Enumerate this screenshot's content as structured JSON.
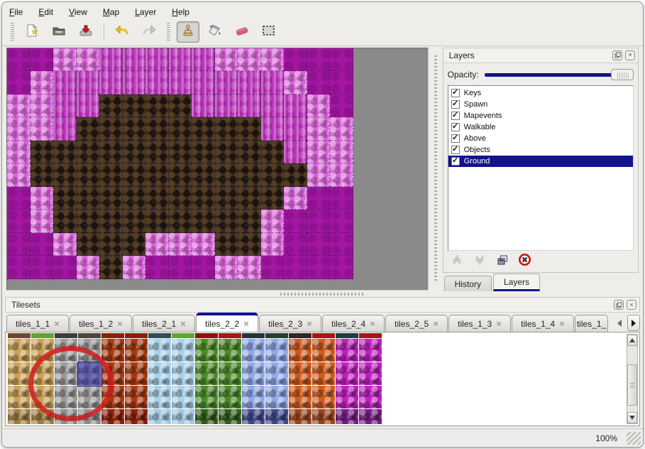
{
  "menubar": {
    "items": [
      "File",
      "Edit",
      "View",
      "Map",
      "Layer",
      "Help"
    ]
  },
  "toolbar": {
    "buttons": [
      {
        "name": "new",
        "icon": "new-file-icon"
      },
      {
        "name": "open",
        "icon": "open-folder-icon"
      },
      {
        "name": "save",
        "icon": "save-icon"
      },
      {
        "name": "undo",
        "icon": "undo-icon"
      },
      {
        "name": "redo",
        "icon": "redo-icon"
      },
      {
        "name": "stamp",
        "icon": "stamp-icon",
        "active": true
      },
      {
        "name": "fill",
        "icon": "fill-bucket-icon"
      },
      {
        "name": "eraser",
        "icon": "eraser-icon"
      },
      {
        "name": "select",
        "icon": "rect-select-icon"
      }
    ]
  },
  "map": {
    "background": "#8a8a8a",
    "palette": {
      "D": "#a315a3",
      "P": "#da64da",
      "T": "#c133c1",
      "B": "#37291e"
    },
    "grid_rows": [
      "DDPPTTTTTPPPDDD",
      "DPTTTTTTTTTTPDD",
      "PPTTBBBBTTTTTPD",
      "PPTBBBBBBBBTTPP",
      "PBBBBBBBBBBBTPP",
      "PBBBBBBBBBBBBPP",
      "DPBBBBBBBBBBPDD",
      "DPBBBBBBBBBPDDD",
      "DDPBBBPPPBBPDDD",
      "DDDPBPDDDPPDDDD"
    ]
  },
  "layers_panel": {
    "title": "Layers",
    "opacity_label": "Opacity:",
    "opacity_percent": 100,
    "items": [
      {
        "label": "Keys",
        "checked": true,
        "selected": false
      },
      {
        "label": "Spawn",
        "checked": true,
        "selected": false
      },
      {
        "label": "Mapevents",
        "checked": true,
        "selected": false
      },
      {
        "label": "Walkable",
        "checked": true,
        "selected": false
      },
      {
        "label": "Above",
        "checked": true,
        "selected": false
      },
      {
        "label": "Objects",
        "checked": true,
        "selected": false
      },
      {
        "label": "Ground",
        "checked": true,
        "selected": true
      }
    ],
    "buttons": [
      "raise-layer",
      "lower-layer",
      "duplicate-layer",
      "delete-layer"
    ],
    "dock_tabs": [
      {
        "label": "History",
        "active": false
      },
      {
        "label": "Layers",
        "active": true
      }
    ]
  },
  "tilesets_panel": {
    "title": "Tilesets",
    "tabs": [
      {
        "label": "tiles_1_1",
        "active": false,
        "closable": true
      },
      {
        "label": "tiles_1_2",
        "active": false,
        "closable": true
      },
      {
        "label": "tiles_2_1",
        "active": false,
        "closable": true
      },
      {
        "label": "tiles_2_2",
        "active": true,
        "closable": true
      },
      {
        "label": "tiles_2_3",
        "active": false,
        "closable": true
      },
      {
        "label": "tiles_2_4",
        "active": false,
        "closable": true
      },
      {
        "label": "tiles_2_5",
        "active": false,
        "closable": true
      },
      {
        "label": "tiles_1_3",
        "active": false,
        "closable": true
      },
      {
        "label": "tiles_1_4",
        "active": false,
        "closable": true
      },
      {
        "label": "tiles_1_",
        "active": false,
        "closable": false
      }
    ],
    "columns": [
      "tan",
      "tan",
      "stone",
      "stone",
      "lava",
      "lava",
      "ice",
      "ice",
      "vine",
      "vine",
      "crystal",
      "crystal",
      "ember",
      "ember",
      "cell",
      "cell"
    ],
    "palette": {
      "tan": "#c9a156",
      "stone": "#9a9a9a",
      "lava": "#a5380f",
      "ice": "#a8d0e8",
      "vine": "#4b8a28",
      "crystal": "#8fa8e6",
      "ember": "#ce5a1d",
      "cell": "#be20be"
    },
    "sliver_colors": [
      "#6e4b28",
      "#61a433",
      "#3d3d3d",
      "#52453a",
      "#8e1e08",
      "#8e1e08",
      "#324e56",
      "#61a433",
      "#8e1208",
      "#aa1510",
      "#26323c",
      "#26402a",
      "#33261d",
      "#aa1510",
      "#1e3c42",
      "#aa1510"
    ],
    "bottom_colors": [
      "#a07b3e",
      "#a07b3e",
      "#8c8c8c",
      "#8c8c8c",
      "#8c1e06",
      "#8c1e06",
      "#a0c8e2",
      "#a0c8e2",
      "#2f5c17",
      "#2f5c17",
      "#3e4689",
      "#3e4689",
      "#9a431b",
      "#9a431b",
      "#731b82",
      "#731b82"
    ],
    "selected_tile": {
      "col": 3,
      "row": 1
    }
  },
  "statusbar": {
    "zoom": "100%"
  },
  "colors": {
    "accent_navy": "#13138b",
    "selection_blue": "rgba(40,40,160,0.55)",
    "annotation_red": "#cf1d1d",
    "map_background_gray": "#8a8a8a"
  }
}
